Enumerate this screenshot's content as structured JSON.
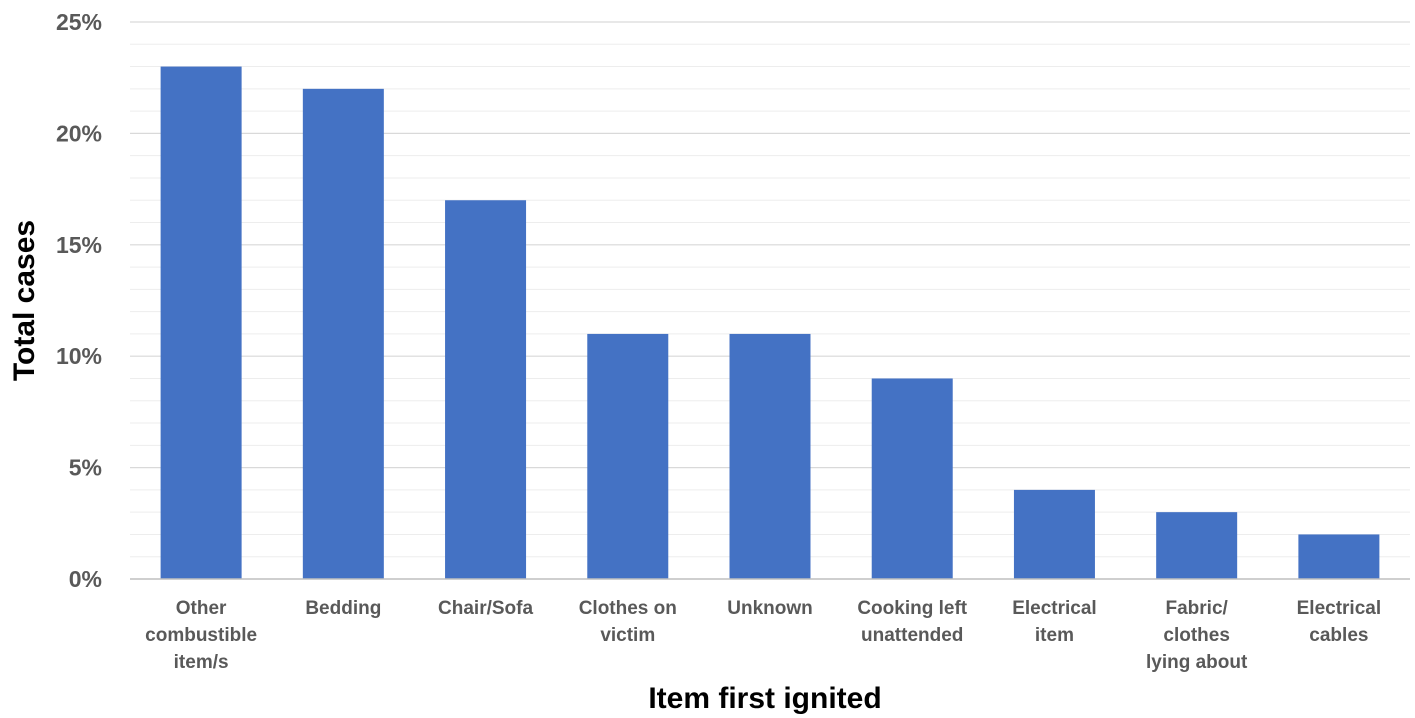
{
  "chart_data": {
    "type": "bar",
    "categories": [
      [
        "Other",
        "combustible",
        "item/s"
      ],
      [
        "Bedding"
      ],
      [
        "Chair/Sofa"
      ],
      [
        "Clothes on",
        "victim"
      ],
      [
        "Unknown"
      ],
      [
        "Cooking left",
        "unattended"
      ],
      [
        "Electrical",
        "item"
      ],
      [
        "Fabric/",
        "clothes",
        "lying about"
      ],
      [
        "Electrical",
        "cables"
      ]
    ],
    "values": [
      23,
      22,
      17,
      11,
      11,
      9,
      4,
      3,
      2
    ],
    "xlabel": "Item first ignited",
    "ylabel": "Total cases",
    "ylim": [
      0,
      25
    ],
    "yticks": [
      0,
      5,
      10,
      15,
      20,
      25
    ],
    "ytick_labels": [
      "0%",
      "5%",
      "10%",
      "15%",
      "20%",
      "25%"
    ],
    "minor_grid_step": 1,
    "grid": true,
    "legend": "none",
    "bar_color": "#4472c4"
  }
}
